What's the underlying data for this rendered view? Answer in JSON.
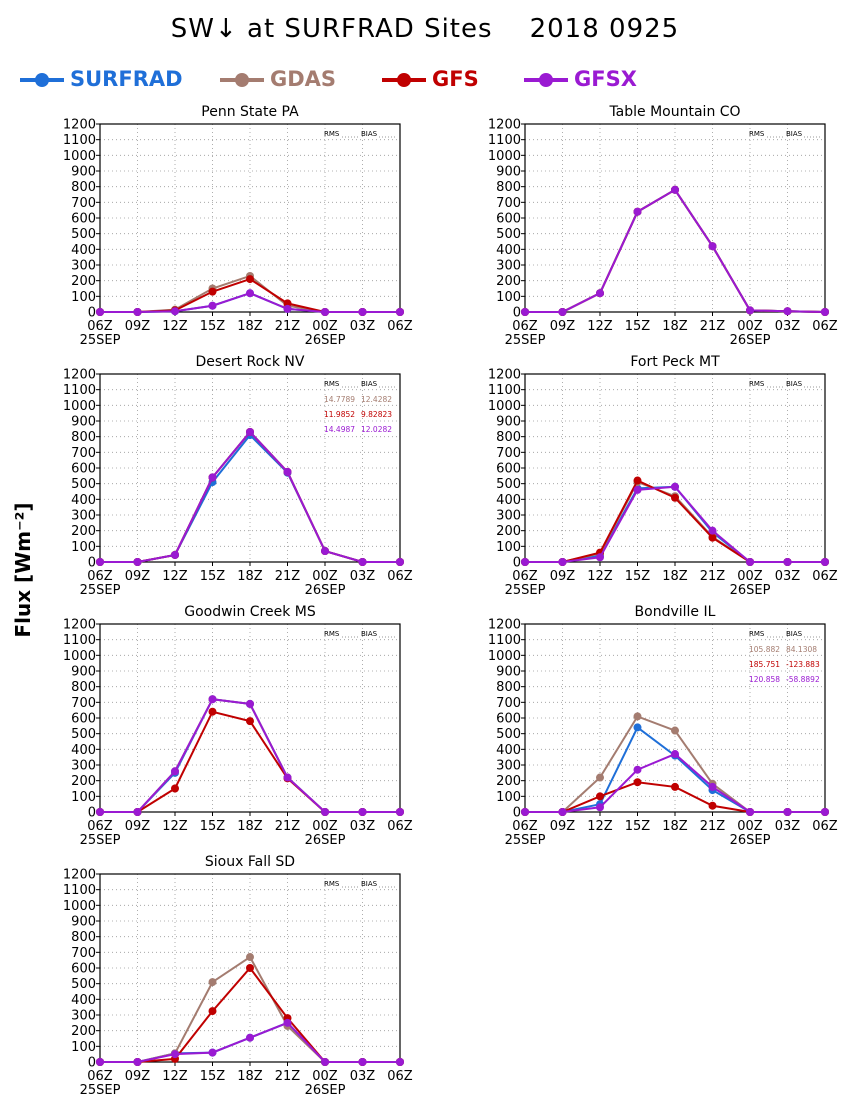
{
  "title": "SW↓ at SURFRAD Sites    2018 0925",
  "ylabel": "Flux [Wm⁻²]",
  "legend": [
    {
      "name": "SURFRAD",
      "color": "#1f6fd8"
    },
    {
      "name": "GDAS",
      "color": "#a47c70"
    },
    {
      "name": "GFS",
      "color": "#c00000"
    },
    {
      "name": "GFSX",
      "color": "#9a1ad2"
    }
  ],
  "chart_data": {
    "type": "line",
    "x_tick_labels": [
      "06Z",
      "09Z",
      "12Z",
      "15Z",
      "18Z",
      "21Z",
      "00Z",
      "03Z",
      "06Z"
    ],
    "x_date_labels": [
      {
        "at": "06Z",
        "text": "25SEP"
      },
      {
        "at": "00Z",
        "text": "26SEP"
      }
    ],
    "ylim": [
      0,
      1200
    ],
    "yticks": [
      0,
      100,
      200,
      300,
      400,
      500,
      600,
      700,
      800,
      900,
      1000,
      1100,
      1200
    ],
    "grid": true,
    "stats_header": [
      "RMS",
      "BIAS"
    ],
    "panels": [
      {
        "title": "Penn State PA",
        "stats": [],
        "series": [
          {
            "name": "SURFRAD",
            "values": [
              0,
              0,
              5,
              40,
              120,
              20,
              0,
              0,
              0
            ]
          },
          {
            "name": "GDAS",
            "values": [
              0,
              0,
              15,
              150,
              230,
              40,
              0,
              0,
              0
            ]
          },
          {
            "name": "GFS",
            "values": [
              0,
              0,
              10,
              130,
              210,
              55,
              0,
              0,
              0
            ]
          },
          {
            "name": "GFSX",
            "values": [
              0,
              0,
              5,
              40,
              120,
              20,
              0,
              0,
              0
            ]
          }
        ]
      },
      {
        "title": "Table Mountain CO",
        "stats": [],
        "series": [
          {
            "name": "SURFRAD",
            "values": [
              0,
              0,
              120,
              640,
              780,
              420,
              10,
              5,
              0
            ]
          },
          {
            "name": "GDAS",
            "values": [
              0,
              0,
              120,
              640,
              780,
              420,
              10,
              5,
              0
            ]
          },
          {
            "name": "GFS",
            "values": [
              0,
              0,
              120,
              640,
              780,
              420,
              10,
              5,
              0
            ]
          },
          {
            "name": "GFSX",
            "values": [
              0,
              0,
              120,
              640,
              780,
              420,
              10,
              5,
              0
            ]
          }
        ]
      },
      {
        "title": "Desert Rock NV",
        "stats": [
          {
            "series": "GDAS",
            "rms": "14.7789",
            "bias": "12.4282"
          },
          {
            "series": "GFS",
            "rms": "11.9852",
            "bias": "9.82823"
          },
          {
            "series": "GFSX",
            "rms": "14.4987",
            "bias": "12.0282"
          }
        ],
        "series": [
          {
            "name": "SURFRAD",
            "values": [
              0,
              0,
              45,
              510,
              810,
              570,
              70,
              0,
              0
            ]
          },
          {
            "name": "GDAS",
            "values": [
              0,
              0,
              45,
              540,
              830,
              575,
              70,
              0,
              0
            ]
          },
          {
            "name": "GFS",
            "values": [
              0,
              0,
              45,
              540,
              830,
              575,
              70,
              0,
              0
            ]
          },
          {
            "name": "GFSX",
            "values": [
              0,
              0,
              45,
              540,
              830,
              575,
              70,
              0,
              0
            ]
          }
        ]
      },
      {
        "title": "Fort Peck MT",
        "stats": [],
        "series": [
          {
            "name": "SURFRAD",
            "values": [
              0,
              0,
              40,
              470,
              480,
              190,
              0,
              0,
              0
            ]
          },
          {
            "name": "GDAS",
            "values": [
              0,
              0,
              55,
              510,
              420,
              160,
              0,
              0,
              0
            ]
          },
          {
            "name": "GFS",
            "values": [
              0,
              0,
              60,
              520,
              410,
              155,
              0,
              0,
              0
            ]
          },
          {
            "name": "GFSX",
            "values": [
              0,
              0,
              30,
              460,
              480,
              200,
              0,
              0,
              0
            ]
          }
        ]
      },
      {
        "title": "Goodwin Creek MS",
        "stats": [],
        "series": [
          {
            "name": "SURFRAD",
            "values": [
              0,
              0,
              250,
              720,
              690,
              220,
              0,
              0,
              0
            ]
          },
          {
            "name": "GDAS",
            "values": [
              0,
              0,
              260,
              720,
              690,
              220,
              0,
              0,
              0
            ]
          },
          {
            "name": "GFS",
            "values": [
              0,
              0,
              150,
              640,
              580,
              215,
              0,
              0,
              0
            ]
          },
          {
            "name": "GFSX",
            "values": [
              0,
              0,
              260,
              720,
              690,
              220,
              0,
              0,
              0
            ]
          }
        ]
      },
      {
        "title": "Bondville IL",
        "stats": [
          {
            "series": "GDAS",
            "rms": "105.882",
            "bias": "84.1308"
          },
          {
            "series": "GFS",
            "rms": "185.751",
            "bias": "-123.883"
          },
          {
            "series": "GFSX",
            "rms": "120.858",
            "bias": "-58.8892"
          }
        ],
        "series": [
          {
            "name": "SURFRAD",
            "values": [
              0,
              0,
              50,
              540,
              360,
              140,
              0,
              0,
              0
            ]
          },
          {
            "name": "GDAS",
            "values": [
              0,
              0,
              220,
              610,
              520,
              180,
              0,
              0,
              0
            ]
          },
          {
            "name": "GFS",
            "values": [
              0,
              0,
              100,
              190,
              160,
              40,
              0,
              0,
              0
            ]
          },
          {
            "name": "GFSX",
            "values": [
              0,
              0,
              30,
              270,
              370,
              160,
              0,
              0,
              0
            ]
          }
        ]
      },
      {
        "title": "Sioux Fall SD",
        "stats": [],
        "series": [
          {
            "name": "SURFRAD",
            "values": [
              0,
              0,
              55,
              60,
              155,
              250,
              0,
              0,
              0
            ]
          },
          {
            "name": "GDAS",
            "values": [
              0,
              0,
              55,
              510,
              670,
              230,
              0,
              0,
              0
            ]
          },
          {
            "name": "GFS",
            "values": [
              0,
              0,
              20,
              325,
              600,
              280,
              0,
              0,
              0
            ]
          },
          {
            "name": "GFSX",
            "values": [
              0,
              0,
              50,
              60,
              155,
              250,
              0,
              0,
              0
            ]
          }
        ]
      }
    ]
  }
}
